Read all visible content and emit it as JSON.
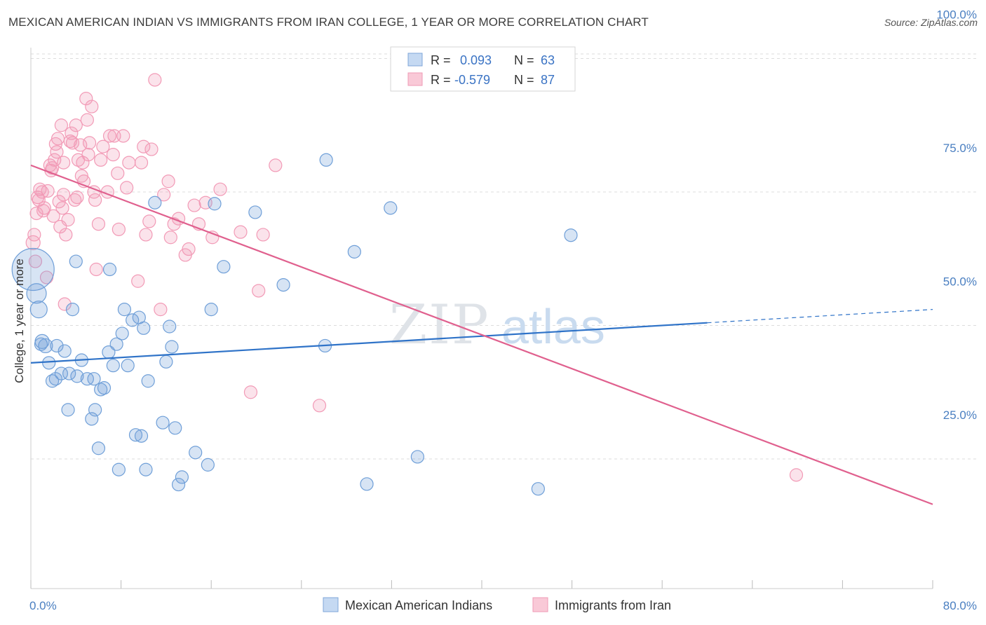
{
  "header": {
    "title": "MEXICAN AMERICAN INDIAN VS IMMIGRANTS FROM IRAN COLLEGE, 1 YEAR OR MORE CORRELATION CHART",
    "source": "Source: ZipAtlas.com"
  },
  "watermark": {
    "part1": "ZIP",
    "part2": "atlas"
  },
  "legend_top": {
    "rows": [
      {
        "r_label": "R =",
        "r_value": "0.093",
        "n_label": "N =",
        "n_value": "63"
      },
      {
        "r_label": "R =",
        "r_value": "-0.579",
        "n_label": "N =",
        "n_value": "87"
      }
    ]
  },
  "chart_data": {
    "type": "scatter",
    "title": "MEXICAN AMERICAN INDIAN VS IMMIGRANTS FROM IRAN COLLEGE, 1 YEAR OR MORE CORRELATION CHART",
    "xlabel": "",
    "ylabel": "College, 1 year or more",
    "xlim": [
      0,
      80
    ],
    "ylim": [
      5,
      105
    ],
    "x_tick_labels": {
      "min": "0.0%",
      "max": "80.0%"
    },
    "y_ticks": [
      {
        "value": 100,
        "label": "100.0%"
      },
      {
        "value": 75,
        "label": "75.0%"
      },
      {
        "value": 50,
        "label": "50.0%"
      },
      {
        "value": 25,
        "label": "25.0%"
      }
    ],
    "grid": "horizontal dashed",
    "legend_position": "bottom",
    "colors": {
      "series1": "#6f9fd8",
      "series2": "#f29ab6",
      "line1": "#2f73c8",
      "line2": "#e0608e"
    },
    "series": [
      {
        "name": "Mexican American Indians",
        "trend": {
          "x0": 0,
          "y0": 43.0,
          "x1": 60,
          "y1": 50.5,
          "x_dash_end": 80,
          "y_dash_end": 53.0
        },
        "points": [
          [
            0.2,
            60.5,
            30
          ],
          [
            0.5,
            56.0,
            14
          ],
          [
            0.7,
            53.0,
            12
          ],
          [
            1.0,
            47.0,
            10
          ],
          [
            1.3,
            46.2,
            10
          ],
          [
            1.6,
            43.0,
            9
          ],
          [
            1.9,
            39.6,
            9
          ],
          [
            2.3,
            46.2,
            9
          ],
          [
            2.7,
            41.0,
            9
          ],
          [
            3.0,
            45.2,
            9
          ],
          [
            3.3,
            34.2,
            9
          ],
          [
            3.7,
            53.0,
            9
          ],
          [
            4.1,
            40.5,
            9
          ],
          [
            4.5,
            43.5,
            9
          ],
          [
            5.0,
            40.0,
            9
          ],
          [
            5.4,
            32.5,
            9
          ],
          [
            5.7,
            34.2,
            9
          ],
          [
            6.0,
            27.0,
            9
          ],
          [
            6.2,
            38.0,
            9
          ],
          [
            6.5,
            38.3,
            9
          ],
          [
            6.9,
            45.0,
            9
          ],
          [
            7.3,
            42.5,
            9
          ],
          [
            7.6,
            46.5,
            9
          ],
          [
            7.8,
            23.0,
            9
          ],
          [
            8.1,
            48.5,
            9
          ],
          [
            8.3,
            53.0,
            9
          ],
          [
            8.6,
            42.5,
            9
          ],
          [
            9.0,
            51.0,
            9
          ],
          [
            9.3,
            29.5,
            9
          ],
          [
            9.6,
            51.5,
            9
          ],
          [
            9.8,
            29.3,
            9
          ],
          [
            10.0,
            49.5,
            9
          ],
          [
            10.2,
            23.0,
            9
          ],
          [
            10.4,
            39.6,
            9
          ],
          [
            11.0,
            73.0,
            9
          ],
          [
            11.7,
            31.8,
            9
          ],
          [
            12.0,
            43.2,
            9
          ],
          [
            12.3,
            49.8,
            9
          ],
          [
            12.5,
            46.0,
            9
          ],
          [
            12.8,
            30.8,
            9
          ],
          [
            13.1,
            20.2,
            9
          ],
          [
            13.4,
            21.6,
            9
          ],
          [
            14.6,
            26.2,
            9
          ],
          [
            15.7,
            23.9,
            9
          ],
          [
            16.0,
            53.0,
            9
          ],
          [
            16.3,
            72.8,
            9
          ],
          [
            17.1,
            61.0,
            9
          ],
          [
            19.9,
            71.2,
            9
          ],
          [
            22.4,
            57.6,
            9
          ],
          [
            26.1,
            46.2,
            9
          ],
          [
            26.2,
            81.0,
            9
          ],
          [
            28.7,
            63.8,
            9
          ],
          [
            29.8,
            20.3,
            9
          ],
          [
            31.9,
            72.0,
            9
          ],
          [
            34.3,
            25.4,
            9
          ],
          [
            45.0,
            19.4,
            9
          ],
          [
            47.9,
            66.9,
            9
          ],
          [
            4.0,
            62.0,
            9
          ],
          [
            7.0,
            60.5,
            9
          ],
          [
            2.2,
            40.0,
            9
          ],
          [
            5.6,
            40.0,
            9
          ],
          [
            3.4,
            41.0,
            9
          ],
          [
            0.9,
            46.5,
            9
          ]
        ]
      },
      {
        "name": "Immigrants from Iran",
        "trend": {
          "x0": 0,
          "y0": 80.0,
          "x1": 80,
          "y1": 16.5
        },
        "points": [
          [
            0.2,
            65.5,
            10
          ],
          [
            0.3,
            67.0,
            9
          ],
          [
            0.5,
            71.0,
            9
          ],
          [
            0.7,
            73.5,
            9
          ],
          [
            0.8,
            75.5,
            9
          ],
          [
            1.0,
            75.0,
            9
          ],
          [
            1.2,
            72.0,
            9
          ],
          [
            1.5,
            75.2,
            9
          ],
          [
            1.7,
            80.0,
            9
          ],
          [
            1.9,
            79.5,
            9
          ],
          [
            2.1,
            81.0,
            9
          ],
          [
            2.2,
            84.0,
            9
          ],
          [
            2.3,
            82.5,
            9
          ],
          [
            2.4,
            85.0,
            9
          ],
          [
            2.5,
            73.2,
            9
          ],
          [
            2.6,
            68.5,
            9
          ],
          [
            2.7,
            87.5,
            9
          ],
          [
            2.8,
            72.0,
            9
          ],
          [
            2.9,
            80.5,
            9
          ],
          [
            3.1,
            67.0,
            9
          ],
          [
            3.3,
            69.8,
            9
          ],
          [
            3.5,
            84.5,
            9
          ],
          [
            3.6,
            86.0,
            9
          ],
          [
            3.7,
            84.2,
            9
          ],
          [
            3.9,
            73.5,
            9
          ],
          [
            4.0,
            87.5,
            9
          ],
          [
            4.1,
            74.0,
            9
          ],
          [
            4.2,
            81.0,
            9
          ],
          [
            4.4,
            83.8,
            9
          ],
          [
            4.5,
            78.0,
            9
          ],
          [
            4.6,
            80.5,
            9
          ],
          [
            4.7,
            77.0,
            9
          ],
          [
            4.9,
            92.5,
            9
          ],
          [
            5.0,
            88.5,
            9
          ],
          [
            5.1,
            82.0,
            9
          ],
          [
            5.2,
            84.2,
            9
          ],
          [
            5.4,
            91.0,
            9
          ],
          [
            5.6,
            75.0,
            9
          ],
          [
            5.7,
            73.5,
            9
          ],
          [
            5.8,
            60.5,
            9
          ],
          [
            6.2,
            81.0,
            9
          ],
          [
            6.4,
            83.5,
            9
          ],
          [
            6.8,
            75.0,
            9
          ],
          [
            7.0,
            85.5,
            9
          ],
          [
            7.3,
            82.0,
            9
          ],
          [
            7.4,
            85.5,
            9
          ],
          [
            7.7,
            78.5,
            9
          ],
          [
            7.8,
            68.0,
            9
          ],
          [
            8.2,
            85.5,
            9
          ],
          [
            8.5,
            75.8,
            9
          ],
          [
            8.7,
            80.5,
            9
          ],
          [
            9.5,
            58.3,
            9
          ],
          [
            9.8,
            80.5,
            9
          ],
          [
            10.0,
            83.5,
            9
          ],
          [
            10.2,
            67.0,
            9
          ],
          [
            10.5,
            69.5,
            9
          ],
          [
            10.7,
            83.0,
            9
          ],
          [
            11.0,
            96.0,
            9
          ],
          [
            11.5,
            53.0,
            9
          ],
          [
            11.8,
            74.5,
            9
          ],
          [
            12.2,
            77.0,
            9
          ],
          [
            12.4,
            66.5,
            9
          ],
          [
            12.7,
            69.0,
            9
          ],
          [
            13.1,
            70.0,
            9
          ],
          [
            13.7,
            63.2,
            9
          ],
          [
            14.0,
            64.3,
            9
          ],
          [
            14.5,
            72.5,
            9
          ],
          [
            14.9,
            69.0,
            9
          ],
          [
            15.5,
            73.0,
            9
          ],
          [
            16.1,
            66.5,
            9
          ],
          [
            16.8,
            75.5,
            9
          ],
          [
            18.6,
            67.5,
            9
          ],
          [
            19.5,
            37.5,
            9
          ],
          [
            20.2,
            56.5,
            9
          ],
          [
            20.6,
            67.0,
            9
          ],
          [
            21.7,
            80.0,
            9
          ],
          [
            25.6,
            35.0,
            9
          ],
          [
            67.9,
            22.0,
            9
          ],
          [
            0.4,
            62.0,
            9
          ],
          [
            1.4,
            59.0,
            9
          ],
          [
            2.0,
            70.5,
            9
          ],
          [
            3.0,
            54.0,
            9
          ],
          [
            1.1,
            71.5,
            9
          ],
          [
            0.6,
            74.0,
            9
          ],
          [
            1.8,
            79.0,
            9
          ],
          [
            2.9,
            74.5,
            9
          ],
          [
            6.0,
            69.0,
            9
          ]
        ]
      }
    ]
  },
  "legend_bottom": {
    "items": [
      {
        "label": "Mexican American Indians"
      },
      {
        "label": "Immigrants from Iran"
      }
    ]
  }
}
